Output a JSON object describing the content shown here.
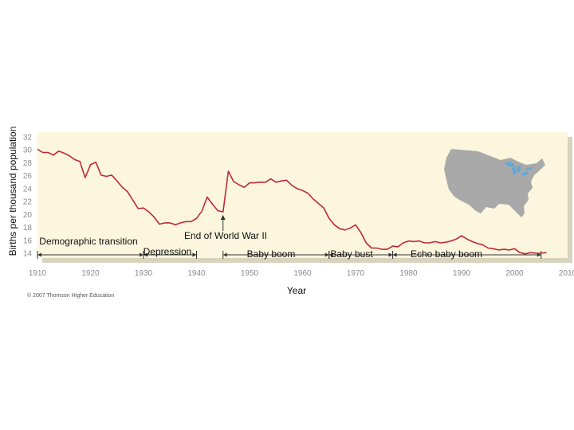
{
  "chart_data": {
    "type": "line",
    "title": "",
    "xlabel": "Year",
    "ylabel": "Births per thousand population",
    "xlim": [
      1910,
      2010
    ],
    "ylim": [
      14,
      32
    ],
    "x_ticks": [
      "1910",
      "1920",
      "1930",
      "1940",
      "1950",
      "1960",
      "1970",
      "1980",
      "1990",
      "2000",
      "2010"
    ],
    "y_ticks": [
      "14",
      "16",
      "18",
      "20",
      "22",
      "24",
      "26",
      "28",
      "30",
      "32"
    ],
    "grid": false,
    "colors": {
      "line": "#c0283a",
      "plot_bg": "#fbf6dd",
      "map": "#a9a9a9",
      "lakes": "#5fa8d8"
    },
    "series": [
      {
        "x": [
          1910,
          1911,
          1912,
          1913,
          1914,
          1915,
          1916,
          1917,
          1918,
          1919,
          1920,
          1921,
          1922,
          1923,
          1924,
          1925,
          1926,
          1927,
          1928,
          1929,
          1930,
          1931,
          1932,
          1933,
          1934,
          1935,
          1936,
          1937,
          1938,
          1939,
          1940,
          1941,
          1942,
          1943,
          1944,
          1945,
          1946,
          1947,
          1948,
          1949,
          1950,
          1951,
          1952,
          1953,
          1954,
          1955,
          1956,
          1957,
          1958,
          1959,
          1960,
          1961,
          1962,
          1963,
          1964,
          1965,
          1966,
          1967,
          1968,
          1969,
          1970,
          1971,
          1972,
          1973,
          1974,
          1975,
          1976,
          1977,
          1978,
          1979,
          1980,
          1981,
          1982,
          1983,
          1984,
          1985,
          1986,
          1987,
          1988,
          1989,
          1990,
          1991,
          1992,
          1993,
          1994,
          1995,
          1996,
          1997,
          1998,
          1999,
          2000,
          2001,
          2002,
          2003,
          2004,
          2005,
          2006
        ],
        "y": [
          30.1,
          29.6,
          29.6,
          29.2,
          29.8,
          29.5,
          29.1,
          28.5,
          28.2,
          25.7,
          27.7,
          28.1,
          26.1,
          25.9,
          26.1,
          25.2,
          24.2,
          23.5,
          22.2,
          20.9,
          21.0,
          20.4,
          19.6,
          18.5,
          18.7,
          18.7,
          18.4,
          18.7,
          18.9,
          18.9,
          19.4,
          20.5,
          22.7,
          21.6,
          20.6,
          20.4,
          26.7,
          25.1,
          24.6,
          24.2,
          24.9,
          24.9,
          25.0,
          25.0,
          25.5,
          25.0,
          25.2,
          25.3,
          24.5,
          24.0,
          23.7,
          23.3,
          22.4,
          21.7,
          21.0,
          19.4,
          18.4,
          17.8,
          17.6,
          17.9,
          18.4,
          17.2,
          15.6,
          14.8,
          14.8,
          14.6,
          14.6,
          15.1,
          15.0,
          15.6,
          15.9,
          15.8,
          15.9,
          15.6,
          15.6,
          15.8,
          15.6,
          15.7,
          15.9,
          16.2,
          16.7,
          16.2,
          15.8,
          15.5,
          15.3,
          14.8,
          14.7,
          14.5,
          14.6,
          14.5,
          14.7,
          14.1,
          13.9,
          14.1,
          14.0,
          14.0,
          14.1
        ]
      }
    ],
    "annotations": {
      "demographic_transition": "Demographic transition",
      "depression": "Depression",
      "end_of_ww2": "End of World War II",
      "baby_boom": "Baby boom",
      "baby_bust": "Baby bust",
      "echo_baby_boom": "Echo baby boom"
    },
    "periods": [
      {
        "x0": 1910,
        "x1": 1930
      },
      {
        "x0": 1930,
        "x1": 1940
      },
      {
        "x0": 1945,
        "x1": 1965
      },
      {
        "x0": 1965,
        "x1": 1977
      },
      {
        "x0": 1977,
        "x1": 2005
      }
    ],
    "arrow_at": 1945,
    "copyright": "© 2007 Thomson Higher Education"
  }
}
